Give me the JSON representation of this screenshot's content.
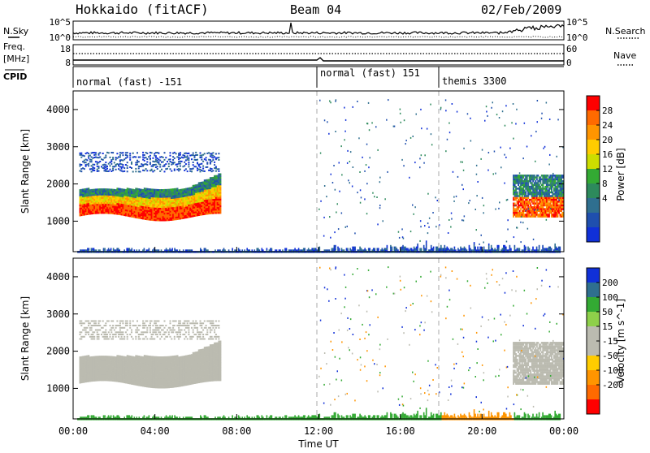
{
  "header": {
    "station": "Hokkaido (fitACF)",
    "beam": "Beam 04",
    "date": "02/Feb/2009"
  },
  "top_panel": {
    "left_label": "N.Sky",
    "right_label": "N.Search",
    "left_ticks": [
      "10^5",
      "10^0"
    ],
    "right_ticks": [
      "10^5",
      "10^0"
    ]
  },
  "freq_panel": {
    "label_line1": "Freq.",
    "label_line2": "[MHz]",
    "left_ticks": [
      "18",
      "8"
    ],
    "right_label": "Nave",
    "right_ticks": [
      "60",
      "0"
    ]
  },
  "cpid": {
    "label": "CPID",
    "segments": [
      "normal (fast) -151",
      "normal (fast) 151",
      "themis 3300"
    ]
  },
  "axes": {
    "y_label": "Slant Range [km]",
    "y_ticks": [
      "4000",
      "3000",
      "2000",
      "1000"
    ],
    "x_label": "Time UT",
    "x_ticks": [
      "00:00",
      "04:00",
      "08:00",
      "12:00",
      "16:00",
      "20:00",
      "00:00"
    ]
  },
  "colorbars": {
    "power": {
      "label": "Power [dB]",
      "ticks": [
        "28",
        "24",
        "20",
        "16",
        "12",
        "8",
        "4"
      ],
      "colors": [
        "#ff0000",
        "#ff6a00",
        "#ff9500",
        "#ffcc00",
        "#ccdd00",
        "#33aa33",
        "#2d8a5c",
        "#2f6f8f",
        "#1f4fae",
        "#1030d8"
      ]
    },
    "velocity": {
      "label": "Velocity [m s^-1]",
      "ticks": [
        "200",
        "100",
        "50",
        "15",
        "-15",
        "-50",
        "-100",
        "-200"
      ],
      "colors": [
        "#1030d8",
        "#2f6f8f",
        "#33aa33",
        "#8ed04a",
        "#bbbbb0",
        "#bbbbb0",
        "#ffcc00",
        "#ff9500",
        "#ff6a00",
        "#ff0000"
      ]
    }
  },
  "chart_data": {
    "type": "heatmap",
    "x_range_hours": [
      0,
      24
    ],
    "y_range_km": [
      180,
      4500
    ],
    "y_tick_values": [
      4000,
      3000,
      2000,
      1000
    ],
    "x_tick_hours": [
      0,
      4,
      8,
      12,
      16,
      20,
      24
    ],
    "cpid_change_hours": [
      12,
      18
    ],
    "power_ticks_db": [
      28,
      24,
      20,
      16,
      12,
      8,
      4
    ],
    "velocity_ticks_ms": [
      200,
      100,
      50,
      15,
      -15,
      -50,
      -100,
      -200
    ]
  }
}
